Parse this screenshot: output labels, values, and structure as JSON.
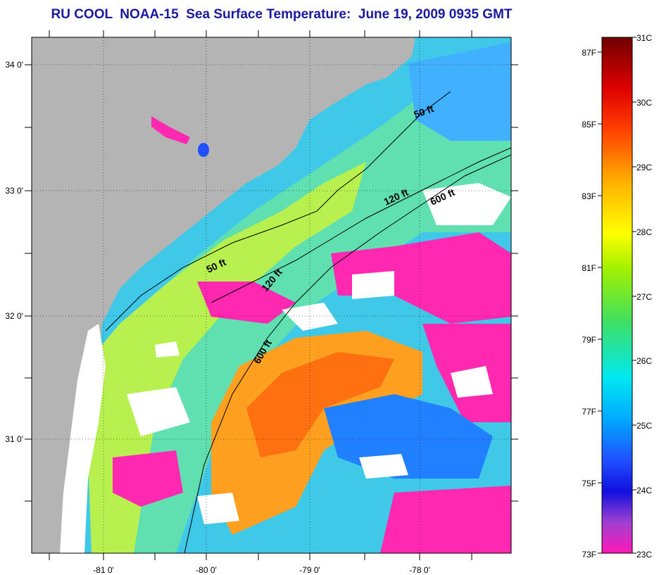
{
  "title": "RU COOL  NOAA-15  Sea Surface Temperature:  June 19, 2009 0935 GMT",
  "axes": {
    "x_ticks": [
      "-81 0'",
      "-80 0'",
      "-79 0'",
      "-78 0'"
    ],
    "y_ticks": [
      "34 0'",
      "33 0'",
      "32 0'",
      "31 0'"
    ]
  },
  "contours": {
    "labels": [
      "50 ft",
      "120 ft",
      "600 ft",
      "50 ft",
      "120 ft",
      "600 ft"
    ]
  },
  "colorbar": {
    "celsius": [
      "31C",
      "30C",
      "29C",
      "28C",
      "27C",
      "26C",
      "25C",
      "24C",
      "23C"
    ],
    "fahrenheit": [
      "87F",
      "85F",
      "83F",
      "81F",
      "79F",
      "77F",
      "75F",
      "73F"
    ]
  },
  "colors": {
    "land": "#b4b4b4",
    "cloud": "#ffffff",
    "title": "#1a1aa0"
  }
}
